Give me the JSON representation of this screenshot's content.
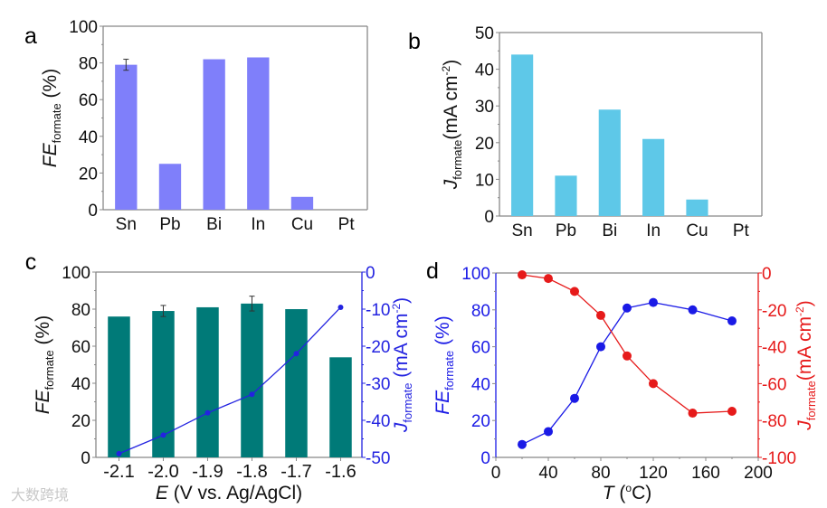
{
  "watermark": "大数跨境",
  "chart_data": [
    {
      "panel": "a",
      "type": "bar",
      "categories": [
        "Sn",
        "Pb",
        "Bi",
        "In",
        "Cu",
        "Pt"
      ],
      "values": [
        79,
        25,
        82,
        83,
        7,
        0
      ],
      "errors": [
        3,
        null,
        null,
        null,
        null,
        null
      ],
      "ylabel": {
        "main": "FE",
        "sub": "formate",
        "unit": " (%)"
      },
      "ylim": [
        0,
        100
      ],
      "yticks": [
        "0",
        "20",
        "40",
        "60",
        "80",
        "100"
      ],
      "color": "#7f7ffa"
    },
    {
      "panel": "b",
      "type": "bar",
      "categories": [
        "Sn",
        "Pb",
        "Bi",
        "In",
        "Cu",
        "Pt"
      ],
      "values": [
        44,
        11,
        29,
        21,
        4.5,
        0
      ],
      "ylabel": {
        "main": "J",
        "sub": "formate",
        "unit": "(mA cm",
        "sup": "-2",
        "close": ")"
      },
      "ylim": [
        0,
        50
      ],
      "yticks": [
        "0",
        "10",
        "20",
        "30",
        "40",
        "50"
      ],
      "color": "#5ec8e8"
    },
    {
      "panel": "c",
      "type": "bar+line",
      "categories": [
        "-2.1",
        "-2.0",
        "-1.9",
        "-1.8",
        "-1.7",
        "-1.6"
      ],
      "xlabel": {
        "main": "E",
        "rest": " (V vs. Ag/AgCl)"
      },
      "bars": {
        "name": "FE formate",
        "values": [
          76,
          79,
          81,
          83,
          80,
          54
        ],
        "errors": [
          null,
          3,
          null,
          4,
          null,
          null
        ],
        "color": "#007a78"
      },
      "line": {
        "name": "J formate",
        "values": [
          -49,
          -44,
          -38,
          -33,
          -22,
          -9.5
        ],
        "color": "#2323e0"
      },
      "ylabel": {
        "main": "FE",
        "sub": "formate",
        "unit": " (%)"
      },
      "ylim": [
        0,
        100
      ],
      "yticks": [
        "0",
        "20",
        "40",
        "60",
        "80",
        "100"
      ],
      "y2label": {
        "main": "J",
        "sub": "formate",
        "unit": " (mA cm",
        "sup": "-2",
        "close": ")"
      },
      "y2lim": [
        -50,
        0
      ],
      "y2ticks": [
        "-50",
        "-40",
        "-30",
        "-20",
        "-10",
        "0"
      ]
    },
    {
      "panel": "d",
      "type": "line",
      "x": [
        20,
        40,
        60,
        80,
        100,
        120,
        150,
        180
      ],
      "xlabel": {
        "main": "T",
        "rest": " (",
        "sup": "o",
        "close": "C)"
      },
      "xlim": [
        0,
        200
      ],
      "xticks": [
        "0",
        "40",
        "80",
        "120",
        "160",
        "200"
      ],
      "series": [
        {
          "name": "FE formate",
          "axis": "left",
          "values": [
            7,
            14,
            32,
            60,
            81,
            84,
            80,
            74
          ],
          "color": "#1a1ae6"
        },
        {
          "name": "J formate",
          "axis": "right",
          "values": [
            -1,
            -3,
            -10,
            -23,
            -45,
            -60,
            -76,
            -75
          ],
          "color": "#e61a1a"
        }
      ],
      "ylabel": {
        "main": "FE",
        "sub": "formate",
        "unit": " (%)"
      },
      "ylim": [
        0,
        100
      ],
      "yticks": [
        "0",
        "20",
        "40",
        "60",
        "80",
        "100"
      ],
      "y2label": {
        "main": "J",
        "sub": "formate",
        "unit": "(mA cm",
        "sup": "-2",
        "close": ")"
      },
      "y2lim": [
        -100,
        0
      ],
      "y2ticks": [
        "-100",
        "-80",
        "-60",
        "-40",
        "-20",
        "0"
      ]
    }
  ]
}
